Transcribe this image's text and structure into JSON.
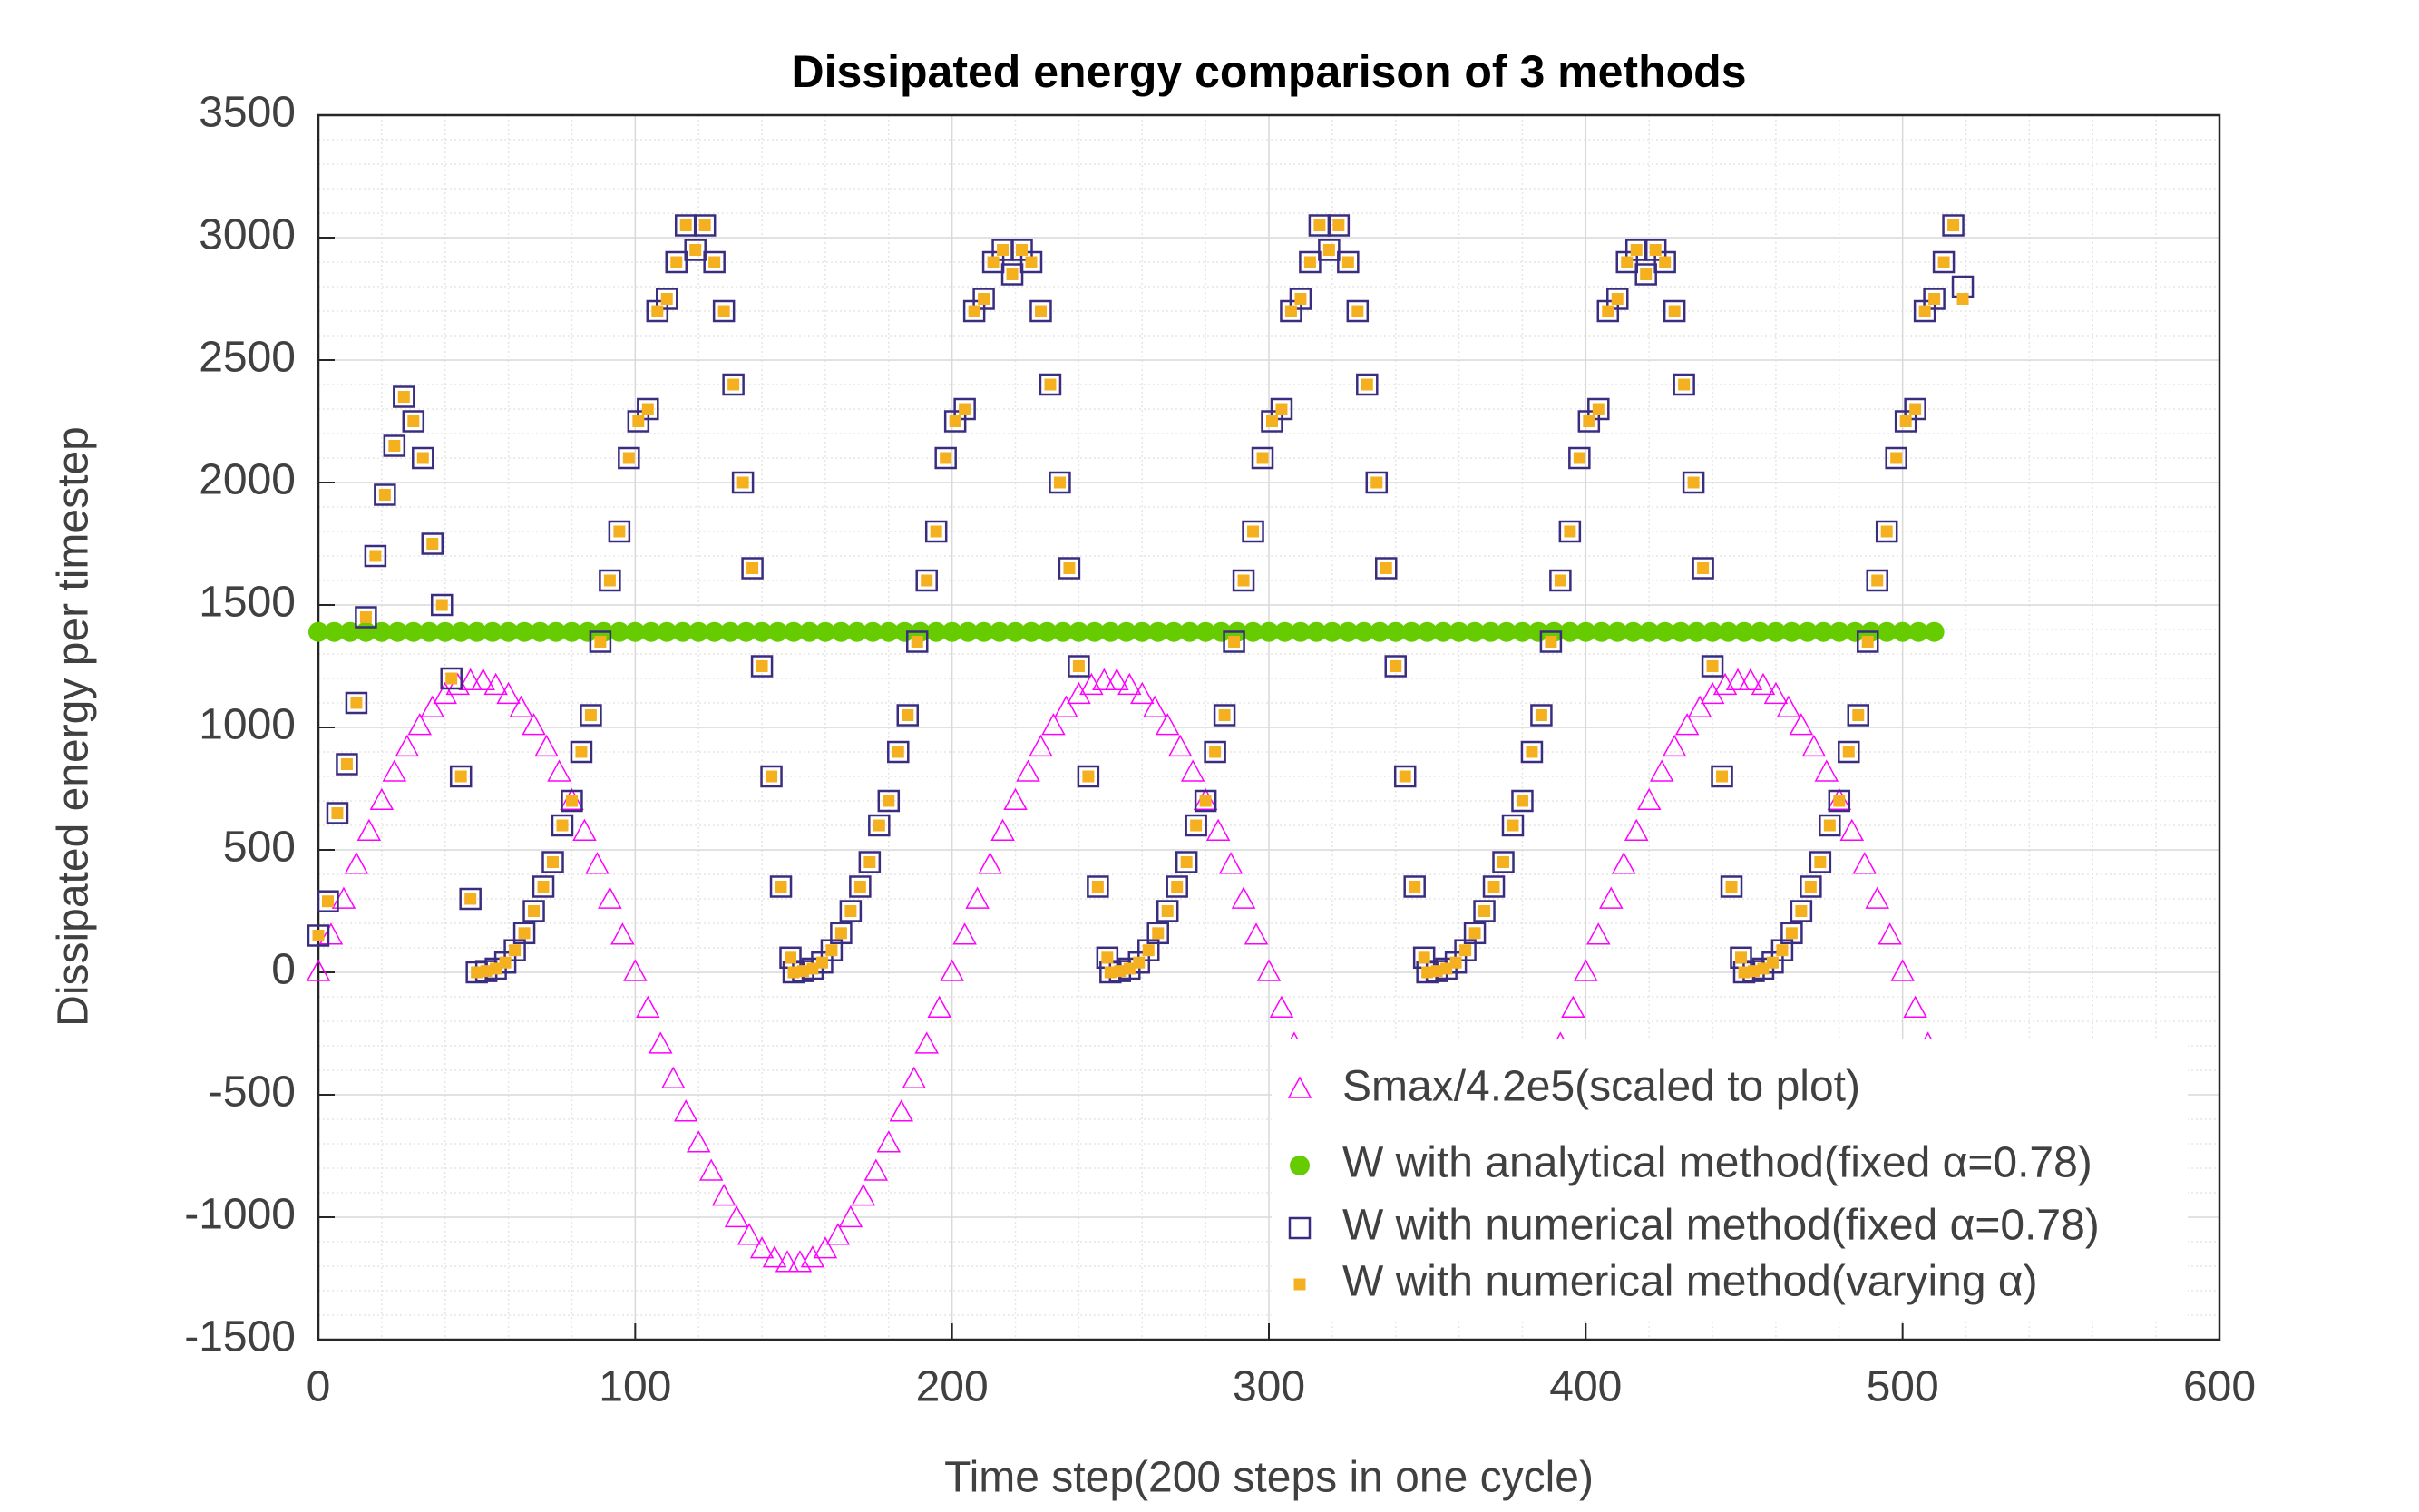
{
  "chart_data": {
    "type": "scatter",
    "title": "Dissipated energy comparison of 3 methods",
    "x_label": "Time step(200 steps in one cycle)",
    "y_label": "Dissipated energy per timestep",
    "xlim": [
      0,
      600
    ],
    "xticks": [
      0,
      100,
      200,
      300,
      400,
      500,
      600
    ],
    "ylim": [
      -1500,
      3500
    ],
    "yticks": [
      -1500,
      -1000,
      -500,
      0,
      500,
      1000,
      1500,
      2000,
      2500,
      3000,
      3500
    ],
    "grid": true,
    "minor_grid": true,
    "legend": "lower right",
    "series": [
      {
        "name": "Smax/4.2e5(scaled to plot)",
        "color": "#ff00ff",
        "marker": "triangle",
        "x": [
          0,
          4,
          8,
          12,
          16,
          20,
          24,
          28,
          32,
          36,
          40,
          44,
          48,
          52,
          56,
          60,
          64,
          68,
          72,
          76,
          80,
          84,
          88,
          92,
          96,
          100,
          104,
          108,
          112,
          116,
          120,
          124,
          128,
          132,
          136,
          140,
          144,
          148,
          152,
          156,
          160,
          164,
          168,
          172,
          176,
          180,
          184,
          188,
          192,
          196,
          200,
          204,
          208,
          212,
          216,
          220,
          224,
          228,
          232,
          236,
          240,
          244,
          248,
          252,
          256,
          260,
          264,
          268,
          272,
          276,
          280,
          284,
          288,
          292,
          296,
          300,
          304,
          308,
          312,
          316,
          320,
          324,
          328,
          332,
          336,
          340,
          344,
          348,
          352,
          356,
          360,
          364,
          368,
          372,
          376,
          380,
          384,
          388,
          392,
          396,
          400,
          404,
          408,
          412,
          416,
          420,
          424,
          428,
          432,
          436,
          440,
          444,
          448,
          452,
          456,
          460,
          464,
          468,
          472,
          476,
          480,
          484,
          488,
          492,
          496,
          500,
          504,
          508,
          512,
          516,
          520
        ],
        "values": [
          0,
          149,
          296,
          438,
          573,
          699,
          815,
          917,
          1005,
          1077,
          1132,
          1169,
          1188,
          1188,
          1169,
          1132,
          1077,
          1005,
          917,
          815,
          699,
          573,
          438,
          296,
          149,
          0,
          -149,
          -296,
          -438,
          -573,
          -699,
          -815,
          -917,
          -1005,
          -1077,
          -1132,
          -1169,
          -1188,
          -1188,
          -1169,
          -1132,
          -1077,
          -1005,
          -917,
          -815,
          -699,
          -573,
          -438,
          -296,
          -149,
          0,
          149,
          296,
          438,
          573,
          699,
          815,
          917,
          1005,
          1077,
          1132,
          1169,
          1188,
          1188,
          1169,
          1132,
          1077,
          1005,
          917,
          815,
          699,
          573,
          438,
          296,
          149,
          0,
          -149,
          -296,
          -438,
          -573,
          -699,
          -815,
          -917,
          -1005,
          -1077,
          -1132,
          -1169,
          -1188,
          -1188,
          -1169,
          -1132,
          -1077,
          -1005,
          -917,
          -815,
          -699,
          -573,
          -438,
          -296,
          -149,
          0,
          149,
          296,
          438,
          573,
          699,
          815,
          917,
          1005,
          1077,
          1132,
          1169,
          1188,
          1188,
          1169,
          1132,
          1077,
          1005,
          917,
          815,
          699,
          573,
          438,
          296,
          149,
          0,
          -149,
          -296,
          -438,
          -573,
          -699
        ]
      },
      {
        "name": "W with analytical method(fixed α=0.78)",
        "color": "#66cc00",
        "marker": "circle",
        "x": [
          0,
          5,
          10,
          15,
          20,
          25,
          30,
          35,
          40,
          45,
          50,
          55,
          60,
          65,
          70,
          75,
          80,
          85,
          90,
          95,
          100,
          105,
          110,
          115,
          120,
          125,
          130,
          135,
          140,
          145,
          150,
          155,
          160,
          165,
          170,
          175,
          180,
          185,
          190,
          195,
          200,
          205,
          210,
          215,
          220,
          225,
          230,
          235,
          240,
          245,
          250,
          255,
          260,
          265,
          270,
          275,
          280,
          285,
          290,
          295,
          300,
          305,
          310,
          315,
          320,
          325,
          330,
          335,
          340,
          345,
          350,
          355,
          360,
          365,
          370,
          375,
          380,
          385,
          390,
          395,
          400,
          405,
          410,
          415,
          420,
          425,
          430,
          435,
          440,
          445,
          450,
          455,
          460,
          465,
          470,
          475,
          480,
          485,
          490,
          495,
          500,
          505,
          510
        ],
        "values": [
          1390,
          1390,
          1390,
          1390,
          1390,
          1390,
          1390,
          1390,
          1390,
          1390,
          1390,
          1390,
          1390,
          1390,
          1390,
          1390,
          1390,
          1390,
          1390,
          1390,
          1390,
          1390,
          1390,
          1390,
          1390,
          1390,
          1390,
          1390,
          1390,
          1390,
          1390,
          1390,
          1390,
          1390,
          1390,
          1390,
          1390,
          1390,
          1390,
          1390,
          1390,
          1390,
          1390,
          1390,
          1390,
          1390,
          1390,
          1390,
          1390,
          1390,
          1390,
          1390,
          1390,
          1390,
          1390,
          1390,
          1390,
          1390,
          1390,
          1390,
          1390,
          1390,
          1390,
          1390,
          1390,
          1390,
          1390,
          1390,
          1390,
          1390,
          1390,
          1390,
          1390,
          1390,
          1390,
          1390,
          1390,
          1390,
          1390,
          1390,
          1390,
          1390,
          1390,
          1390,
          1390,
          1390,
          1390,
          1390,
          1390,
          1390,
          1390,
          1390,
          1390,
          1390,
          1390,
          1390,
          1390,
          1390,
          1390,
          1390,
          1390,
          1390,
          1390
        ]
      },
      {
        "name": "W with numerical method(fixed α=0.78)",
        "color": "#3a2d80",
        "marker": "square",
        "x": [
          0,
          3,
          6,
          9,
          12,
          15,
          18,
          21,
          24,
          27,
          30,
          33,
          36,
          39,
          42,
          45,
          48,
          50,
          53,
          56,
          59,
          62,
          65,
          68,
          71,
          74,
          77,
          80,
          83,
          86,
          89,
          92,
          95,
          98,
          101,
          104,
          107,
          110,
          113,
          116,
          119,
          122,
          125,
          128,
          131,
          134,
          137,
          140,
          143,
          146,
          149,
          150,
          153,
          156,
          159,
          162,
          165,
          168,
          171,
          174,
          177,
          180,
          183,
          186,
          189,
          192,
          195,
          198,
          201,
          204,
          207,
          210,
          213,
          216,
          219,
          222,
          225,
          228,
          231,
          234,
          237,
          240,
          243,
          246,
          249,
          250,
          253,
          256,
          259,
          262,
          265,
          268,
          271,
          274,
          277,
          280,
          283,
          286,
          289,
          292,
          295,
          298,
          301,
          304,
          307,
          310,
          313,
          316,
          319,
          322,
          325,
          328,
          331,
          334,
          337,
          340,
          343,
          346,
          349,
          350,
          353,
          356,
          359,
          362,
          365,
          368,
          371,
          374,
          377,
          380,
          383,
          386,
          389,
          392,
          395,
          398,
          401,
          404,
          407,
          410,
          413,
          416,
          419,
          422,
          425,
          428,
          431,
          434,
          437,
          440,
          443,
          446,
          449,
          450,
          453,
          456,
          459,
          462,
          465,
          468,
          471,
          474,
          477,
          480,
          483,
          486,
          489,
          492,
          495,
          498,
          501,
          504,
          507,
          510,
          513,
          516,
          519
        ],
        "values": [
          150,
          290,
          650,
          850,
          1100,
          1450,
          1700,
          1950,
          2150,
          2350,
          2250,
          2100,
          1750,
          1500,
          1200,
          800,
          300,
          0,
          5,
          15,
          40,
          90,
          160,
          250,
          350,
          450,
          600,
          700,
          900,
          1050,
          1350,
          1600,
          1800,
          2100,
          2250,
          2300,
          2700,
          2750,
          2900,
          3050,
          2950,
          3050,
          2900,
          2700,
          2400,
          2000,
          1650,
          1250,
          800,
          350,
          60,
          0,
          5,
          15,
          40,
          90,
          160,
          250,
          350,
          450,
          600,
          700,
          900,
          1050,
          1350,
          1600,
          1800,
          2100,
          2250,
          2300,
          2700,
          2750,
          2900,
          2950,
          2850,
          2950,
          2900,
          2700,
          2400,
          2000,
          1650,
          1250,
          800,
          350,
          60,
          0,
          5,
          15,
          40,
          90,
          160,
          250,
          350,
          450,
          600,
          700,
          900,
          1050,
          1350,
          1600,
          1800,
          2100,
          2250,
          2300,
          2700,
          2750,
          2900,
          3050,
          2950,
          3050,
          2900,
          2700,
          2400,
          2000,
          1650,
          1250,
          800,
          350,
          60,
          0,
          5,
          15,
          40,
          90,
          160,
          250,
          350,
          450,
          600,
          700,
          900,
          1050,
          1350,
          1600,
          1800,
          2100,
          2250,
          2300,
          2700,
          2750,
          2900,
          2950,
          2850,
          2950,
          2900,
          2700,
          2400,
          2000,
          1650,
          1250,
          800,
          350,
          60,
          0,
          5,
          15,
          40,
          90,
          160,
          250,
          350,
          450,
          600,
          700,
          900,
          1050,
          1350,
          1600,
          1800,
          2100,
          2250,
          2300,
          2700,
          2750,
          2900,
          3050,
          2800
        ]
      },
      {
        "name": "W with numerical method(varying α)",
        "color": "#f5b020",
        "marker": "point",
        "x": [
          0,
          3,
          6,
          9,
          12,
          15,
          18,
          21,
          24,
          27,
          30,
          33,
          36,
          39,
          42,
          45,
          48,
          50,
          53,
          56,
          59,
          62,
          65,
          68,
          71,
          74,
          77,
          80,
          83,
          86,
          89,
          92,
          95,
          98,
          101,
          104,
          107,
          110,
          113,
          116,
          119,
          122,
          125,
          128,
          131,
          134,
          137,
          140,
          143,
          146,
          149,
          150,
          153,
          156,
          159,
          162,
          165,
          168,
          171,
          174,
          177,
          180,
          183,
          186,
          189,
          192,
          195,
          198,
          201,
          204,
          207,
          210,
          213,
          216,
          219,
          222,
          225,
          228,
          231,
          234,
          237,
          240,
          243,
          246,
          249,
          250,
          253,
          256,
          259,
          262,
          265,
          268,
          271,
          274,
          277,
          280,
          283,
          286,
          289,
          292,
          295,
          298,
          301,
          304,
          307,
          310,
          313,
          316,
          319,
          322,
          325,
          328,
          331,
          334,
          337,
          340,
          343,
          346,
          349,
          350,
          353,
          356,
          359,
          362,
          365,
          368,
          371,
          374,
          377,
          380,
          383,
          386,
          389,
          392,
          395,
          398,
          401,
          404,
          407,
          410,
          413,
          416,
          419,
          422,
          425,
          428,
          431,
          434,
          437,
          440,
          443,
          446,
          449,
          450,
          453,
          456,
          459,
          462,
          465,
          468,
          471,
          474,
          477,
          480,
          483,
          486,
          489,
          492,
          495,
          498,
          501,
          504,
          507,
          510,
          513,
          516,
          519
        ],
        "values": [
          150,
          290,
          650,
          850,
          1100,
          1450,
          1700,
          1950,
          2150,
          2350,
          2250,
          2100,
          1750,
          1500,
          1200,
          800,
          300,
          0,
          5,
          15,
          40,
          90,
          160,
          250,
          350,
          450,
          600,
          700,
          900,
          1050,
          1350,
          1600,
          1800,
          2100,
          2250,
          2300,
          2700,
          2750,
          2900,
          3050,
          2950,
          3050,
          2900,
          2700,
          2400,
          2000,
          1650,
          1250,
          800,
          350,
          60,
          0,
          5,
          15,
          40,
          90,
          160,
          250,
          350,
          450,
          600,
          700,
          900,
          1050,
          1350,
          1600,
          1800,
          2100,
          2250,
          2300,
          2700,
          2750,
          2900,
          2950,
          2850,
          2950,
          2900,
          2700,
          2400,
          2000,
          1650,
          1250,
          800,
          350,
          60,
          0,
          5,
          15,
          40,
          90,
          160,
          250,
          350,
          450,
          600,
          700,
          900,
          1050,
          1350,
          1600,
          1800,
          2100,
          2250,
          2300,
          2700,
          2750,
          2900,
          3050,
          2950,
          3050,
          2900,
          2700,
          2400,
          2000,
          1650,
          1250,
          800,
          350,
          60,
          0,
          5,
          15,
          40,
          90,
          160,
          250,
          350,
          450,
          600,
          700,
          900,
          1050,
          1350,
          1600,
          1800,
          2100,
          2250,
          2300,
          2700,
          2750,
          2900,
          2950,
          2850,
          2950,
          2900,
          2700,
          2400,
          2000,
          1650,
          1250,
          800,
          350,
          60,
          0,
          5,
          15,
          40,
          90,
          160,
          250,
          350,
          450,
          600,
          700,
          900,
          1050,
          1350,
          1600,
          1800,
          2100,
          2250,
          2300,
          2700,
          2750,
          2900,
          3050,
          2750
        ]
      }
    ]
  }
}
